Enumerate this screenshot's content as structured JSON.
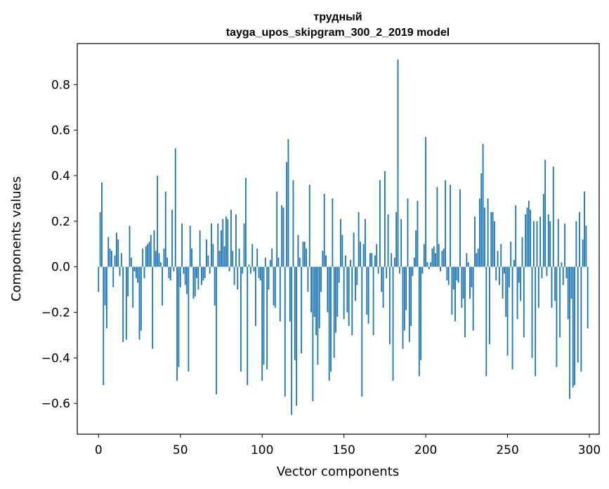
{
  "chart_data": {
    "type": "bar",
    "title_line1": "трудный",
    "title_line2": "tayga_upos_skipgram_300_2_2019 model",
    "xlabel": "Vector components",
    "ylabel": "Components values",
    "xlim": [
      -13,
      306
    ],
    "ylim": [
      -0.735,
      0.98
    ],
    "xticks": [
      0,
      50,
      100,
      150,
      200,
      250,
      300
    ],
    "xtick_labels": [
      "0",
      "50",
      "100",
      "150",
      "200",
      "250",
      "300"
    ],
    "yticks": [
      -0.6,
      -0.4,
      -0.2,
      0.0,
      0.2,
      0.4,
      0.6,
      0.8
    ],
    "ytick_labels": [
      "−0.6",
      "−0.4",
      "−0.2",
      "0.0",
      "0.2",
      "0.4",
      "0.6",
      "0.8"
    ],
    "bar_color": "#1f77b4",
    "grid": false,
    "values": [
      -0.11,
      0.24,
      0.37,
      -0.52,
      -0.17,
      -0.27,
      0.13,
      0.08,
      0.07,
      -0.09,
      0.05,
      0.15,
      0.12,
      -0.04,
      0.06,
      -0.33,
      0.0,
      -0.32,
      -0.13,
      0.18,
      0.04,
      -0.18,
      -0.02,
      -0.05,
      -0.07,
      -0.32,
      -0.28,
      0.08,
      -0.05,
      0.09,
      0.1,
      0.11,
      0.14,
      -0.36,
      0.16,
      0.07,
      0.4,
      0.06,
      0.02,
      -0.17,
      0.08,
      0.33,
      0.04,
      -0.05,
      -0.06,
      0.25,
      -0.02,
      0.52,
      -0.5,
      -0.44,
      -0.09,
      0.19,
      -0.03,
      -0.08,
      -0.12,
      -0.46,
      0.18,
      0.08,
      -0.14,
      -0.13,
      -0.05,
      -0.1,
      0.16,
      -0.08,
      -0.06,
      -0.05,
      0.12,
      0.05,
      -0.03,
      0.19,
      0.1,
      -0.17,
      -0.56,
      0.19,
      0.07,
      0.16,
      0.21,
      0.09,
      0.22,
      0.21,
      -0.02,
      0.25,
      0.07,
      -0.08,
      0.23,
      -0.1,
      0.08,
      -0.46,
      -0.03,
      0.19,
      0.39,
      -0.52,
      0.01,
      -0.03,
      0.1,
      -0.02,
      -0.26,
      0.08,
      -0.05,
      -0.06,
      -0.5,
      -0.43,
      0.04,
      -0.45,
      -0.1,
      0.03,
      0.08,
      -0.17,
      -0.18,
      0.33,
      0.04,
      -0.24,
      0.27,
      0.26,
      -0.57,
      0.46,
      0.56,
      -0.24,
      -0.65,
      0.38,
      -0.41,
      -0.61,
      0.14,
      0.04,
      -0.38,
      0.11,
      0.11,
      0.08,
      -0.11,
      0.36,
      -0.2,
      -0.59,
      -0.22,
      -0.3,
      -0.43,
      -0.27,
      -0.11,
      0.07,
      0.32,
      0.05,
      -0.2,
      -0.5,
      -0.46,
      0.3,
      -0.4,
      -0.29,
      -0.22,
      -0.07,
      0.21,
      0.14,
      -0.23,
      0.05,
      -0.2,
      -0.26,
      0.03,
      -0.3,
      0.15,
      -0.15,
      -0.08,
      0.24,
      0.11,
      -0.57,
      0.1,
      0.21,
      -0.21,
      -0.25,
      0.06,
      0.06,
      -0.3,
      0.05,
      0.1,
      -0.03,
      0.38,
      -0.11,
      -0.18,
      0.42,
      -0.05,
      0.23,
      -0.34,
      0.06,
      -0.5,
      0.04,
      0.24,
      0.91,
      -0.03,
      0.21,
      -0.36,
      -0.28,
      -0.19,
      0.3,
      -0.33,
      -0.26,
      -0.04,
      0.04,
      0.16,
      0.29,
      -0.48,
      -0.41,
      -0.03,
      0.1,
      0.57,
      0.02,
      -0.01,
      0.02,
      0.08,
      0.09,
      0.06,
      0.35,
      0.1,
      -0.02,
      0.07,
      0.08,
      0.38,
      -0.06,
      -0.08,
      0.36,
      -0.21,
      -0.1,
      -0.24,
      -0.06,
      -0.07,
      0.34,
      -0.18,
      -0.14,
      -0.31,
      0.06,
      0.02,
      -0.14,
      -0.09,
      -0.28,
      0.22,
      0.06,
      0.08,
      0.3,
      0.41,
      0.54,
      0.26,
      -0.48,
      0.3,
      -0.34,
      0.24,
      0.24,
      0.2,
      -0.06,
      0.07,
      -0.08,
      0.1,
      -0.14,
      -0.03,
      -0.22,
      -0.39,
      -0.09,
      0.11,
      -0.45,
      0.03,
      0.27,
      -0.23,
      -0.07,
      -0.15,
      0.13,
      -0.31,
      0.23,
      0.26,
      0.29,
      0.25,
      -0.4,
      0.2,
      -0.48,
      0.2,
      -0.18,
      0.22,
      -0.05,
      0.32,
      0.47,
      -0.04,
      0.23,
      0.2,
      -0.18,
      0.44,
      -0.15,
      -0.44,
      0.21,
      -0.31,
      0.02,
      -0.08,
      0.19,
      -0.05,
      -0.23,
      -0.58,
      -0.14,
      -0.53,
      -0.52,
      0.2,
      -0.42,
      0.24,
      -0.46,
      0.12,
      0.33,
      0.18,
      -0.27
    ]
  }
}
